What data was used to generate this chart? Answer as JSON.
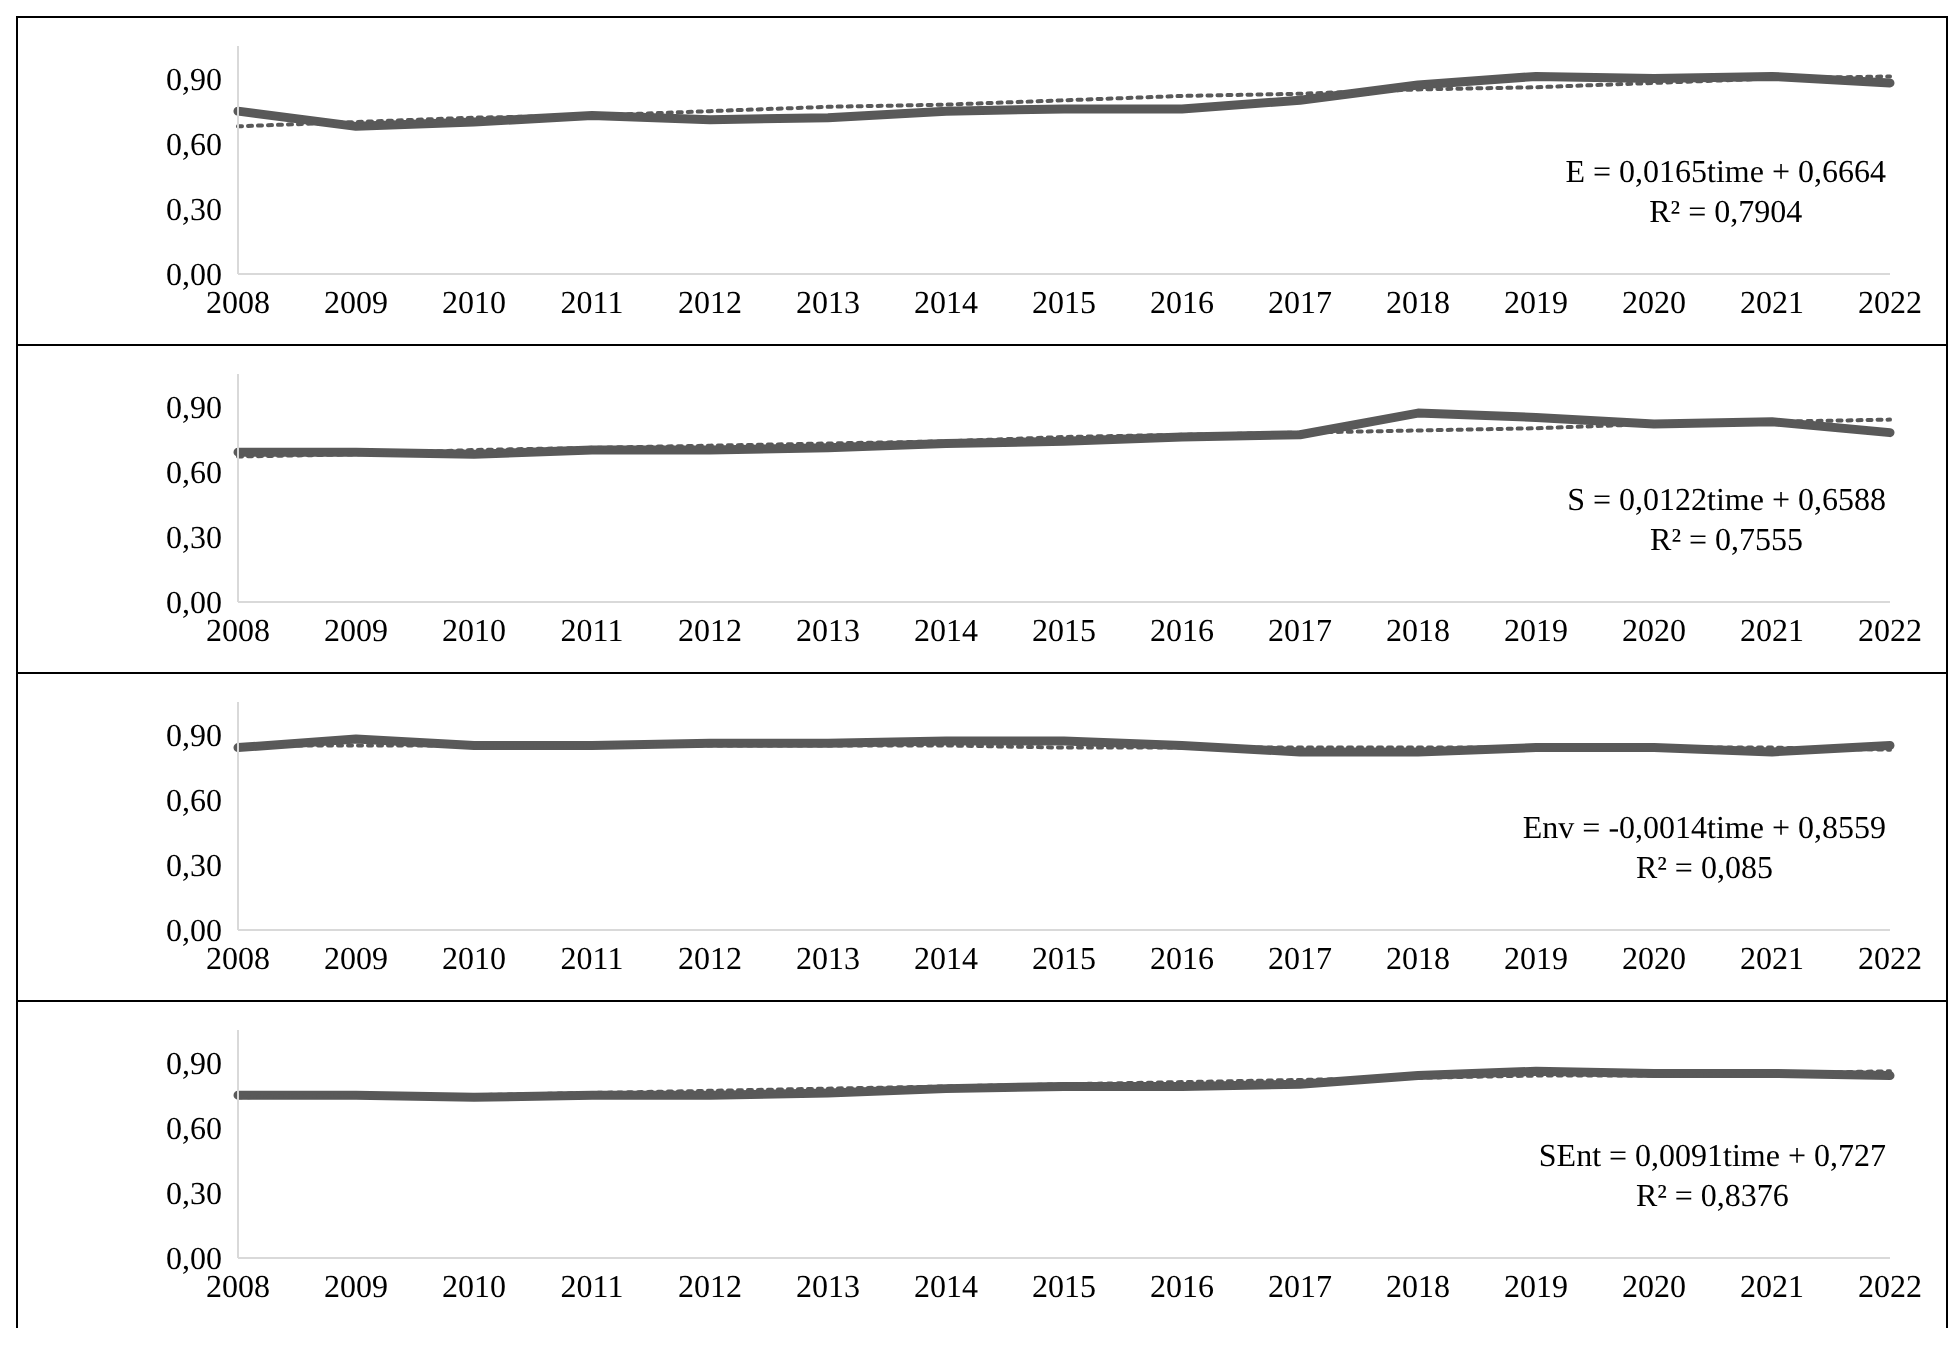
{
  "chart_data": [
    {
      "type": "line",
      "categories": [
        "2008",
        "2009",
        "2010",
        "2011",
        "2012",
        "2013",
        "2014",
        "2015",
        "2016",
        "2017",
        "2018",
        "2019",
        "2020",
        "2021",
        "2022"
      ],
      "ylim": [
        0,
        1.05
      ],
      "yticks": [
        {
          "value": 0,
          "label": "0,00"
        },
        {
          "value": 0.3,
          "label": "0,30"
        },
        {
          "value": 0.6,
          "label": "0,60"
        },
        {
          "value": 0.9,
          "label": "0,90"
        }
      ],
      "marker": "none",
      "annotations": [
        "E = 0,0165time + 0,6664",
        "R² = 0,7904"
      ],
      "series": [
        {
          "type": "line",
          "line_style": "solid",
          "color": "#595959",
          "values": [
            0.75,
            0.68,
            0.7,
            0.73,
            0.71,
            0.72,
            0.75,
            0.76,
            0.76,
            0.8,
            0.87,
            0.91,
            0.9,
            0.91,
            0.88
          ]
        },
        {
          "type": "line",
          "line_style": "dotted",
          "color": "#595959",
          "values": [
            0.68,
            0.7,
            0.72,
            0.73,
            0.75,
            0.77,
            0.78,
            0.8,
            0.82,
            0.83,
            0.85,
            0.86,
            0.88,
            0.9,
            0.91
          ]
        }
      ]
    },
    {
      "type": "line",
      "categories": [
        "2008",
        "2009",
        "2010",
        "2011",
        "2012",
        "2013",
        "2014",
        "2015",
        "2016",
        "2017",
        "2018",
        "2019",
        "2020",
        "2021",
        "2022"
      ],
      "ylim": [
        0,
        1.05
      ],
      "yticks": [
        {
          "value": 0,
          "label": "0,00"
        },
        {
          "value": 0.3,
          "label": "0,30"
        },
        {
          "value": 0.6,
          "label": "0,60"
        },
        {
          "value": 0.9,
          "label": "0,90"
        }
      ],
      "marker": "none",
      "annotations": [
        "S = 0,0122time + 0,6588",
        "R² = 0,7555"
      ],
      "series": [
        {
          "type": "line",
          "line_style": "solid",
          "color": "#595959",
          "values": [
            0.69,
            0.69,
            0.68,
            0.7,
            0.7,
            0.71,
            0.73,
            0.74,
            0.76,
            0.77,
            0.87,
            0.85,
            0.82,
            0.83,
            0.78
          ]
        },
        {
          "type": "line",
          "line_style": "dotted",
          "color": "#595959",
          "values": [
            0.67,
            0.68,
            0.7,
            0.71,
            0.72,
            0.73,
            0.74,
            0.76,
            0.77,
            0.78,
            0.79,
            0.8,
            0.82,
            0.83,
            0.84
          ]
        }
      ]
    },
    {
      "type": "line",
      "categories": [
        "2008",
        "2009",
        "2010",
        "2011",
        "2012",
        "2013",
        "2014",
        "2015",
        "2016",
        "2017",
        "2018",
        "2019",
        "2020",
        "2021",
        "2022"
      ],
      "ylim": [
        0,
        1.05
      ],
      "yticks": [
        {
          "value": 0,
          "label": "0,00"
        },
        {
          "value": 0.3,
          "label": "0,30"
        },
        {
          "value": 0.6,
          "label": "0,60"
        },
        {
          "value": 0.9,
          "label": "0,90"
        }
      ],
      "marker": "none",
      "annotations": [
        "Env = -0,0014time + 0,8559",
        "R² = 0,085"
      ],
      "series": [
        {
          "type": "line",
          "line_style": "solid",
          "color": "#595959",
          "values": [
            0.84,
            0.88,
            0.85,
            0.85,
            0.86,
            0.86,
            0.87,
            0.87,
            0.85,
            0.82,
            0.82,
            0.84,
            0.84,
            0.82,
            0.85
          ]
        },
        {
          "type": "line",
          "line_style": "dotted",
          "color": "#595959",
          "values": [
            0.85,
            0.85,
            0.85,
            0.85,
            0.85,
            0.85,
            0.85,
            0.84,
            0.84,
            0.84,
            0.84,
            0.84,
            0.84,
            0.84,
            0.83
          ]
        }
      ]
    },
    {
      "type": "line",
      "categories": [
        "2008",
        "2009",
        "2010",
        "2011",
        "2012",
        "2013",
        "2014",
        "2015",
        "2016",
        "2017",
        "2018",
        "2019",
        "2020",
        "2021",
        "2022"
      ],
      "ylim": [
        0,
        1.05
      ],
      "yticks": [
        {
          "value": 0,
          "label": "0,00"
        },
        {
          "value": 0.3,
          "label": "0,30"
        },
        {
          "value": 0.6,
          "label": "0,60"
        },
        {
          "value": 0.9,
          "label": "0,90"
        }
      ],
      "marker": "none",
      "annotations": [
        "SEnt = 0,0091time + 0,727",
        "R² = 0,8376"
      ],
      "series": [
        {
          "type": "line",
          "line_style": "solid",
          "color": "#595959",
          "values": [
            0.75,
            0.75,
            0.74,
            0.75,
            0.75,
            0.76,
            0.78,
            0.79,
            0.79,
            0.8,
            0.84,
            0.86,
            0.85,
            0.85,
            0.84
          ]
        },
        {
          "type": "line",
          "line_style": "dotted",
          "color": "#595959",
          "values": [
            0.74,
            0.75,
            0.75,
            0.76,
            0.77,
            0.78,
            0.79,
            0.8,
            0.81,
            0.82,
            0.83,
            0.84,
            0.84,
            0.85,
            0.86
          ]
        }
      ]
    }
  ]
}
